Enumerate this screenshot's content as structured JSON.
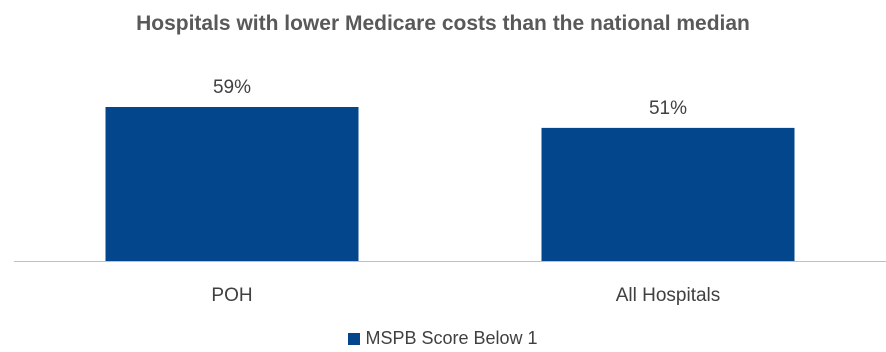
{
  "chart_data": {
    "type": "bar",
    "title": "Hospitals with lower Medicare costs than the national median",
    "categories": [
      "POH",
      "All Hospitals"
    ],
    "series": [
      {
        "name": "MSPB Score Below 1",
        "values": [
          59,
          51
        ],
        "labels": [
          "59%",
          "51%"
        ],
        "color": "#03468C"
      }
    ],
    "xlabel": "",
    "ylabel": "",
    "ylim": [
      0,
      59
    ],
    "grid": false,
    "legend_position": "bottom"
  },
  "colors": {
    "bar": "#03468C",
    "axis": "#BFBFBF",
    "text": "#404040",
    "title": "#595959"
  }
}
